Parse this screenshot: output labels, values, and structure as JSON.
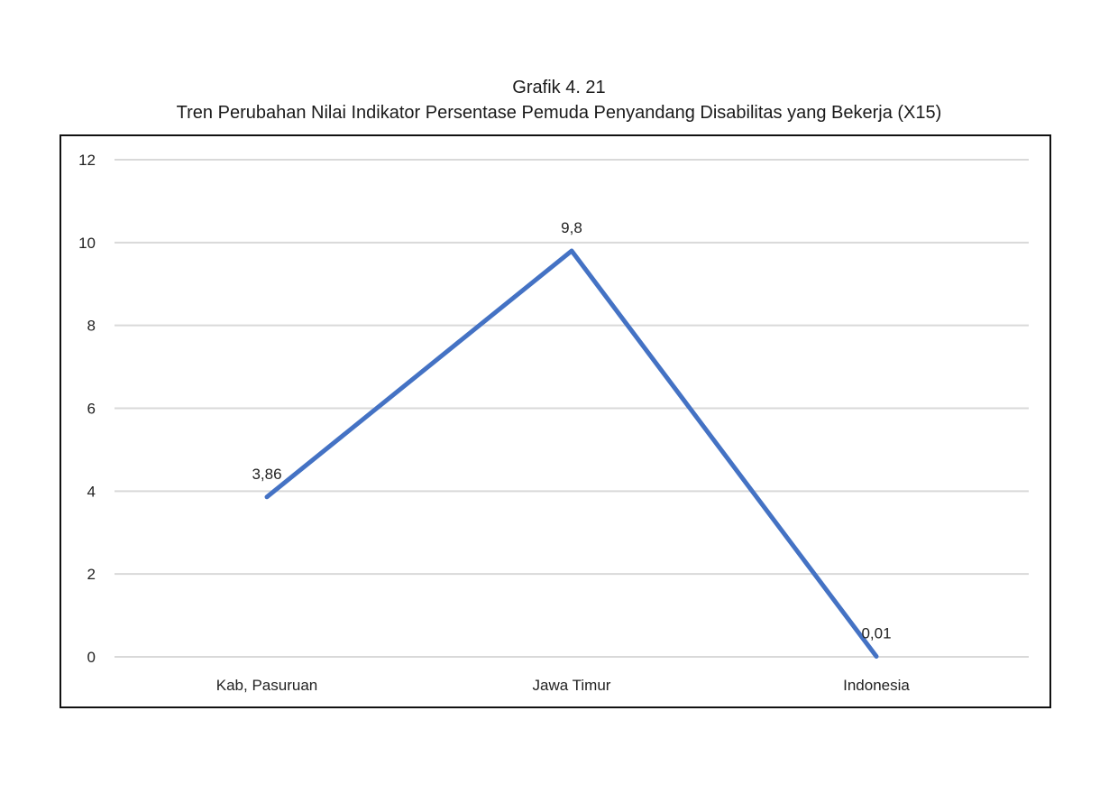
{
  "title": {
    "line1": "Grafik 4. 21",
    "line2": "Tren Perubahan Nilai Indikator Persentase Pemuda Penyandang Disabilitas yang Bekerja (X15)"
  },
  "colors": {
    "line": "#4472C4",
    "gridline": "#d9d9d9",
    "frame": "#111111"
  },
  "chart_data": {
    "type": "line",
    "title": "Grafik 4. 21 Tren Perubahan Nilai Indikator Persentase Pemuda Penyandang Disabilitas yang Bekerja (X15)",
    "categories": [
      "Kab, Pasuruan",
      "Jawa Timur",
      "Indonesia"
    ],
    "series": [
      {
        "name": "X15",
        "values": [
          3.86,
          9.8,
          0.01
        ],
        "labels": [
          "3,86",
          "9,8",
          "0,01"
        ]
      }
    ],
    "xlabel": "",
    "ylabel": "",
    "ylim": [
      0,
      12
    ],
    "yticks": [
      0,
      2,
      4,
      6,
      8,
      10,
      12
    ],
    "grid": true,
    "legend": "none"
  }
}
